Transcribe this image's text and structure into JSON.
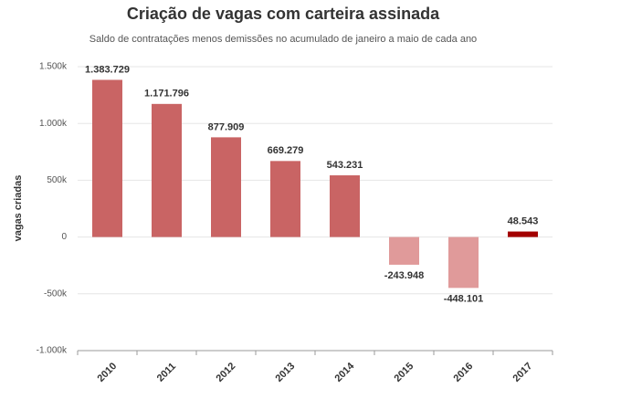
{
  "chart_data": {
    "type": "bar",
    "title": "Criação de vagas com carteira assinada",
    "subtitle": "Saldo de contratações menos demissões no acumulado de janeiro a maio de cada ano",
    "y_label": "vagas criadas",
    "categories": [
      "2010",
      "2011",
      "2012",
      "2013",
      "2014",
      "2015",
      "2016",
      "2017"
    ],
    "values": [
      1383729,
      1171796,
      877909,
      669279,
      543231,
      -243948,
      -448101,
      48543
    ],
    "value_labels": [
      "1.383.729",
      "1.171.796",
      "877.909",
      "669.279",
      "543.231",
      "-243.948",
      "-448.101",
      "48.543"
    ],
    "colors": [
      "#c96464",
      "#c96464",
      "#c96464",
      "#c96464",
      "#c96464",
      "#e09a9a",
      "#e09a9a",
      "#a30000"
    ],
    "ylim": [
      -1000000,
      1500000
    ],
    "yticks": [
      {
        "value": -1000000,
        "label": "-1.000k"
      },
      {
        "value": -500000,
        "label": "-500k"
      },
      0,
      {
        "value": 500000,
        "label": "500k"
      },
      {
        "value": 1000000,
        "label": "1.000k"
      },
      {
        "value": 1500000,
        "label": "1.500k"
      }
    ],
    "grid": true
  }
}
